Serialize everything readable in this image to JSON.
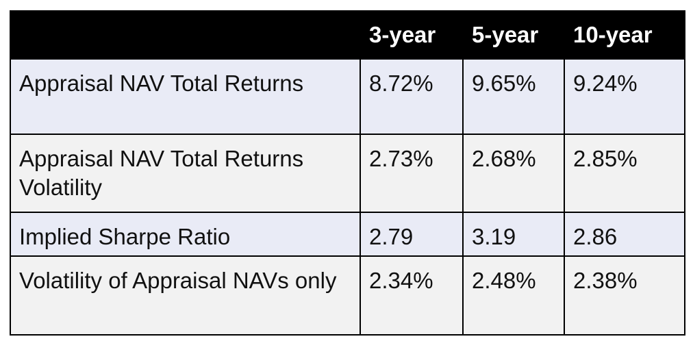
{
  "table": {
    "headers": [
      "",
      "3-year",
      "5-year",
      "10-year"
    ],
    "rows": [
      {
        "label": "Appraisal NAV Total Returns",
        "values": [
          "8.72%",
          "9.65%",
          "9.24%"
        ]
      },
      {
        "label": "Appraisal NAV Total Returns Volatility",
        "values": [
          "2.73%",
          "2.68%",
          "2.85%"
        ]
      },
      {
        "label": "Implied Sharpe Ratio",
        "values": [
          "2.79",
          "3.19",
          "2.86"
        ]
      },
      {
        "label": "Volatility of Appraisal NAVs only",
        "values": [
          "2.34%",
          "2.48%",
          "2.38%"
        ]
      }
    ]
  },
  "colors": {
    "header_bg": "#000000",
    "header_text": "#ffffff",
    "row_shade": "#e9ebf6",
    "row_plain": "#f2f2f2"
  }
}
